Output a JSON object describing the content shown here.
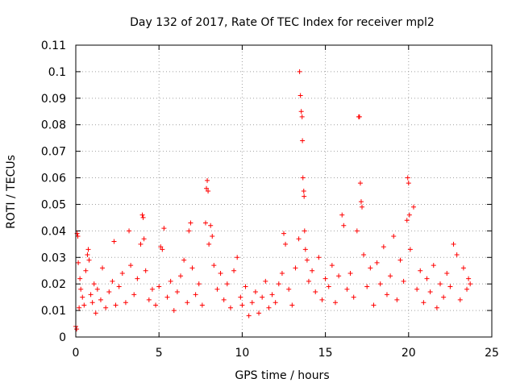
{
  "chart_data": {
    "type": "scatter",
    "title": "Day 132 of 2017, Rate Of TEC Index for receiver mpl2",
    "xlabel": "GPS time / hours",
    "ylabel": "ROTI / TECUs",
    "xlim": [
      0,
      25
    ],
    "ylim": [
      0,
      0.11
    ],
    "xticks": [
      0,
      5,
      10,
      15,
      20,
      25
    ],
    "xtick_labels": [
      "0",
      "5",
      "10",
      "15",
      "20",
      "25"
    ],
    "yticks": [
      0,
      0.01,
      0.02,
      0.03,
      0.04,
      0.05,
      0.06,
      0.07,
      0.08,
      0.09,
      0.1,
      0.11
    ],
    "ytick_labels": [
      "0",
      "0.01",
      "0.02",
      "0.03",
      "0.04",
      "0.05",
      "0.06",
      "0.07",
      "0.08",
      "0.09",
      "0.1",
      "0.11"
    ],
    "grid": true,
    "marker": "+",
    "color": "#ff0000",
    "series": [
      {
        "name": "mpl2",
        "points": [
          [
            0.0,
            0.004
          ],
          [
            0.05,
            0.003
          ],
          [
            0.08,
            0.039
          ],
          [
            0.12,
            0.038
          ],
          [
            0.15,
            0.028
          ],
          [
            0.2,
            0.011
          ],
          [
            0.25,
            0.022
          ],
          [
            0.3,
            0.018
          ],
          [
            0.4,
            0.015
          ],
          [
            0.5,
            0.012
          ],
          [
            0.6,
            0.025
          ],
          [
            0.7,
            0.031
          ],
          [
            0.75,
            0.033
          ],
          [
            0.8,
            0.029
          ],
          [
            0.9,
            0.016
          ],
          [
            1.0,
            0.013
          ],
          [
            1.1,
            0.02
          ],
          [
            1.2,
            0.009
          ],
          [
            1.3,
            0.018
          ],
          [
            1.5,
            0.014
          ],
          [
            1.6,
            0.026
          ],
          [
            1.8,
            0.011
          ],
          [
            2.0,
            0.017
          ],
          [
            2.2,
            0.021
          ],
          [
            2.3,
            0.036
          ],
          [
            2.4,
            0.012
          ],
          [
            2.6,
            0.019
          ],
          [
            2.8,
            0.024
          ],
          [
            3.0,
            0.013
          ],
          [
            3.2,
            0.04
          ],
          [
            3.3,
            0.027
          ],
          [
            3.5,
            0.016
          ],
          [
            3.7,
            0.022
          ],
          [
            3.9,
            0.035
          ],
          [
            4.0,
            0.046
          ],
          [
            4.05,
            0.045
          ],
          [
            4.1,
            0.037
          ],
          [
            4.2,
            0.025
          ],
          [
            4.4,
            0.014
          ],
          [
            4.6,
            0.018
          ],
          [
            4.8,
            0.012
          ],
          [
            5.0,
            0.019
          ],
          [
            5.1,
            0.034
          ],
          [
            5.2,
            0.033
          ],
          [
            5.3,
            0.041
          ],
          [
            5.5,
            0.015
          ],
          [
            5.7,
            0.021
          ],
          [
            5.9,
            0.01
          ],
          [
            6.1,
            0.017
          ],
          [
            6.3,
            0.023
          ],
          [
            6.5,
            0.029
          ],
          [
            6.7,
            0.013
          ],
          [
            6.8,
            0.04
          ],
          [
            6.9,
            0.043
          ],
          [
            7.0,
            0.026
          ],
          [
            7.2,
            0.016
          ],
          [
            7.4,
            0.02
          ],
          [
            7.6,
            0.012
          ],
          [
            7.8,
            0.043
          ],
          [
            7.85,
            0.056
          ],
          [
            7.9,
            0.059
          ],
          [
            7.95,
            0.055
          ],
          [
            8.0,
            0.035
          ],
          [
            8.1,
            0.042
          ],
          [
            8.2,
            0.038
          ],
          [
            8.3,
            0.027
          ],
          [
            8.5,
            0.018
          ],
          [
            8.7,
            0.024
          ],
          [
            8.9,
            0.014
          ],
          [
            9.1,
            0.02
          ],
          [
            9.3,
            0.011
          ],
          [
            9.5,
            0.025
          ],
          [
            9.7,
            0.03
          ],
          [
            9.9,
            0.015
          ],
          [
            10.0,
            0.012
          ],
          [
            10.2,
            0.019
          ],
          [
            10.4,
            0.008
          ],
          [
            10.6,
            0.013
          ],
          [
            10.8,
            0.017
          ],
          [
            11.0,
            0.009
          ],
          [
            11.2,
            0.015
          ],
          [
            11.4,
            0.021
          ],
          [
            11.6,
            0.011
          ],
          [
            11.8,
            0.016
          ],
          [
            12.0,
            0.013
          ],
          [
            12.2,
            0.02
          ],
          [
            12.4,
            0.024
          ],
          [
            12.5,
            0.039
          ],
          [
            12.6,
            0.035
          ],
          [
            12.8,
            0.018
          ],
          [
            13.0,
            0.012
          ],
          [
            13.2,
            0.026
          ],
          [
            13.4,
            0.037
          ],
          [
            13.45,
            0.1
          ],
          [
            13.5,
            0.091
          ],
          [
            13.55,
            0.085
          ],
          [
            13.6,
            0.083
          ],
          [
            13.62,
            0.074
          ],
          [
            13.65,
            0.06
          ],
          [
            13.7,
            0.055
          ],
          [
            13.72,
            0.053
          ],
          [
            13.75,
            0.04
          ],
          [
            13.8,
            0.033
          ],
          [
            13.9,
            0.029
          ],
          [
            14.0,
            0.021
          ],
          [
            14.2,
            0.025
          ],
          [
            14.4,
            0.017
          ],
          [
            14.6,
            0.03
          ],
          [
            14.8,
            0.014
          ],
          [
            15.0,
            0.022
          ],
          [
            15.2,
            0.019
          ],
          [
            15.4,
            0.027
          ],
          [
            15.6,
            0.013
          ],
          [
            15.8,
            0.023
          ],
          [
            16.0,
            0.046
          ],
          [
            16.1,
            0.042
          ],
          [
            16.3,
            0.018
          ],
          [
            16.5,
            0.024
          ],
          [
            16.7,
            0.015
          ],
          [
            16.9,
            0.04
          ],
          [
            17.0,
            0.083
          ],
          [
            17.05,
            0.083
          ],
          [
            17.1,
            0.058
          ],
          [
            17.15,
            0.051
          ],
          [
            17.2,
            0.049
          ],
          [
            17.3,
            0.031
          ],
          [
            17.5,
            0.019
          ],
          [
            17.7,
            0.026
          ],
          [
            17.9,
            0.012
          ],
          [
            18.1,
            0.028
          ],
          [
            18.3,
            0.02
          ],
          [
            18.5,
            0.034
          ],
          [
            18.7,
            0.016
          ],
          [
            18.9,
            0.023
          ],
          [
            19.1,
            0.038
          ],
          [
            19.3,
            0.014
          ],
          [
            19.5,
            0.029
          ],
          [
            19.7,
            0.021
          ],
          [
            19.9,
            0.044
          ],
          [
            19.95,
            0.06
          ],
          [
            20.0,
            0.058
          ],
          [
            20.05,
            0.046
          ],
          [
            20.1,
            0.033
          ],
          [
            20.3,
            0.049
          ],
          [
            20.5,
            0.018
          ],
          [
            20.7,
            0.025
          ],
          [
            20.9,
            0.013
          ],
          [
            21.1,
            0.022
          ],
          [
            21.3,
            0.017
          ],
          [
            21.5,
            0.027
          ],
          [
            21.7,
            0.011
          ],
          [
            21.9,
            0.02
          ],
          [
            22.1,
            0.015
          ],
          [
            22.3,
            0.024
          ],
          [
            22.5,
            0.019
          ],
          [
            22.7,
            0.035
          ],
          [
            22.9,
            0.031
          ],
          [
            23.1,
            0.014
          ],
          [
            23.3,
            0.026
          ],
          [
            23.5,
            0.018
          ],
          [
            23.6,
            0.022
          ],
          [
            23.7,
            0.02
          ]
        ]
      }
    ]
  }
}
